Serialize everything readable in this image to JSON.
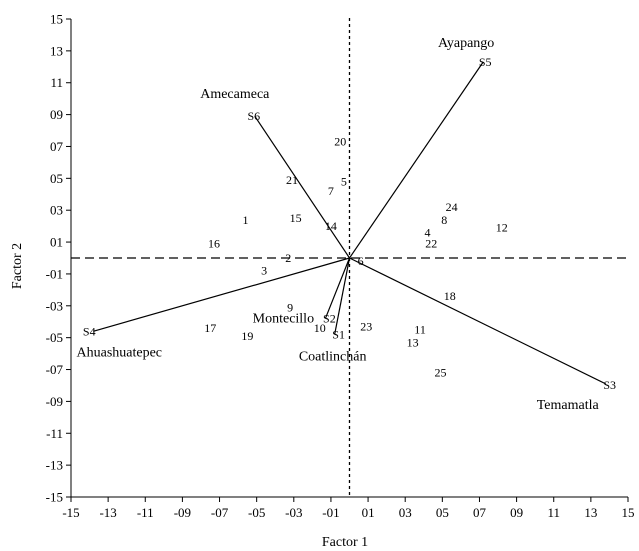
{
  "chart_data": {
    "type": "scatter",
    "title": "",
    "xlabel": "Factor 1",
    "ylabel": "Factor 2",
    "xlim": [
      -15,
      15
    ],
    "ylim": [
      -15,
      15
    ],
    "x_ticks": [
      -15,
      -13,
      -11,
      -9,
      -7,
      -5,
      -3,
      -1,
      1,
      3,
      5,
      7,
      9,
      11,
      13,
      15
    ],
    "x_tick_labels": [
      "-15",
      "-13",
      "-11",
      "-09",
      "-07",
      "-05",
      "-03",
      "-01",
      "01",
      "03",
      "05",
      "07",
      "09",
      "11",
      "13",
      "15"
    ],
    "y_ticks": [
      15,
      13,
      11,
      9,
      7,
      5,
      3,
      1,
      -1,
      -3,
      -5,
      -7,
      -9,
      -11,
      -13,
      -15
    ],
    "y_tick_labels": [
      "15",
      "13",
      "11",
      "09",
      "07",
      "05",
      "03",
      "01",
      "-01",
      "-03",
      "-05",
      "-07",
      "-09",
      "-11",
      "-13",
      "-15"
    ],
    "grid": false,
    "reference_lines": {
      "x": 0,
      "y": 0,
      "style": "dashed"
    },
    "origin": [
      0,
      0
    ],
    "sites": [
      {
        "id": "S1",
        "name": "Coatlinchán",
        "x": -0.8,
        "y": -4.8
      },
      {
        "id": "S2",
        "name": "Montecillo",
        "x": -1.3,
        "y": -3.8
      },
      {
        "id": "S3",
        "name": "Temamatla",
        "x": 13.8,
        "y": -7.9
      },
      {
        "id": "S4",
        "name": "Ahuashuatepec",
        "x": -13.8,
        "y": -4.6
      },
      {
        "id": "S5",
        "name": "Ayapango",
        "x": 7.2,
        "y": 12.3
      },
      {
        "id": "S6",
        "name": "Amecameca",
        "x": -5.1,
        "y": 8.9
      }
    ],
    "points": [
      {
        "label": "1",
        "x": -5.6,
        "y": 2.4
      },
      {
        "label": "2",
        "x": -3.3,
        "y": 0.0
      },
      {
        "label": "3",
        "x": -4.6,
        "y": -0.8
      },
      {
        "label": "4",
        "x": 4.2,
        "y": 1.6
      },
      {
        "label": "5",
        "x": -0.3,
        "y": 4.8
      },
      {
        "label": "6",
        "x": 0.6,
        "y": -0.2
      },
      {
        "label": "7",
        "x": -1.0,
        "y": 4.2
      },
      {
        "label": "8",
        "x": 5.1,
        "y": 2.4
      },
      {
        "label": "9",
        "x": -3.2,
        "y": -3.1
      },
      {
        "label": "10",
        "x": -1.6,
        "y": -4.4
      },
      {
        "label": "11",
        "x": 3.8,
        "y": -4.5
      },
      {
        "label": "12",
        "x": 8.2,
        "y": 1.9
      },
      {
        "label": "13",
        "x": 3.4,
        "y": -5.3
      },
      {
        "label": "14",
        "x": -1.0,
        "y": 2.0
      },
      {
        "label": "15",
        "x": -2.9,
        "y": 2.5
      },
      {
        "label": "16",
        "x": -7.3,
        "y": 0.9
      },
      {
        "label": "17",
        "x": -7.5,
        "y": -4.4
      },
      {
        "label": "18",
        "x": 5.4,
        "y": -2.4
      },
      {
        "label": "19",
        "x": -5.5,
        "y": -4.9
      },
      {
        "label": "20",
        "x": -0.5,
        "y": 7.3
      },
      {
        "label": "21",
        "x": -3.1,
        "y": 4.9
      },
      {
        "label": "22",
        "x": 4.4,
        "y": 0.9
      },
      {
        "label": "23",
        "x": 0.9,
        "y": -4.3
      },
      {
        "label": "24",
        "x": 5.5,
        "y": 3.2
      },
      {
        "label": "25",
        "x": 4.9,
        "y": -7.2
      }
    ]
  }
}
